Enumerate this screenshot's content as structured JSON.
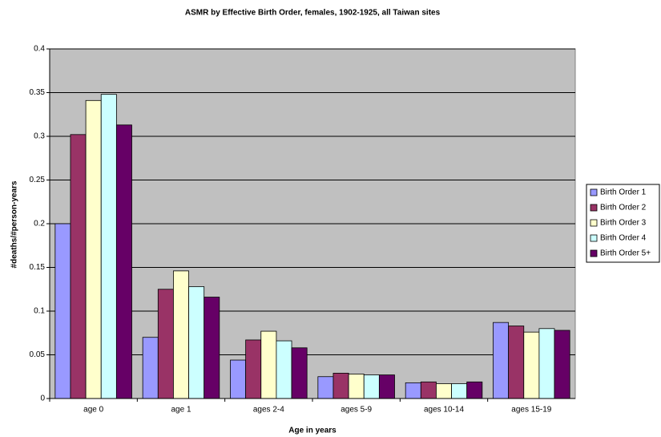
{
  "chart_data": {
    "type": "bar",
    "title": "ASMR by Effective Birth Order, females, 1902-1925, all Taiwan sites",
    "x_label": "Age in years",
    "y_label": "#deaths/#person-years",
    "categories": [
      "age 0",
      "age 1",
      "ages 2-4",
      "ages 5-9",
      "ages 10-14",
      "ages 15-19"
    ],
    "series": [
      {
        "name": "Birth Order 1",
        "color": "#9999ff",
        "values": [
          0.2,
          0.07,
          0.044,
          0.025,
          0.018,
          0.087
        ]
      },
      {
        "name": "Birth Order 2",
        "color": "#993366",
        "values": [
          0.302,
          0.125,
          0.067,
          0.029,
          0.019,
          0.083
        ]
      },
      {
        "name": "Birth Order 3",
        "color": "#ffffcc",
        "values": [
          0.341,
          0.146,
          0.077,
          0.028,
          0.017,
          0.076
        ]
      },
      {
        "name": "Birth Order 4",
        "color": "#ccffff",
        "values": [
          0.348,
          0.128,
          0.066,
          0.027,
          0.017,
          0.08
        ]
      },
      {
        "name": "Birth Order 5+",
        "color": "#660066",
        "values": [
          0.313,
          0.116,
          0.058,
          0.027,
          0.019,
          0.078
        ]
      }
    ],
    "ylim": [
      0,
      0.4
    ],
    "yticks": [
      0,
      0.05,
      0.1,
      0.15,
      0.2,
      0.25,
      0.3,
      0.35,
      0.4
    ],
    "grid": true,
    "legend": "right",
    "plot_background": "#c0c0c0"
  }
}
